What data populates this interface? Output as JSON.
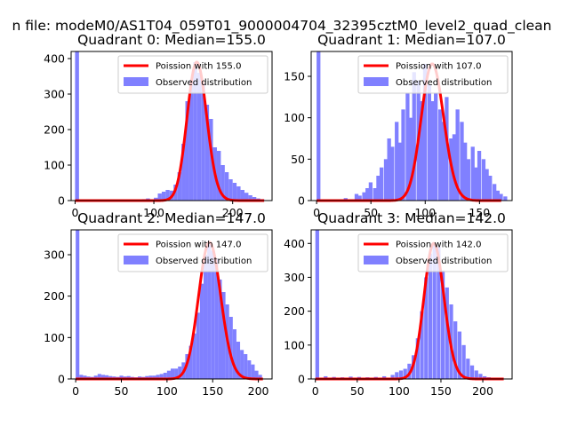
{
  "page": {
    "suptitle": "n file: modeM0/AS1T04_059T01_9000004704_32395cztM0_level2_quad_clean"
  },
  "colors": {
    "bars": "#8080ff",
    "curve": "#ff0000",
    "background": "#ffffff"
  },
  "chart_data": [
    {
      "type": "bar",
      "title": "Quadrant 0: Median=155.0",
      "xlim": [
        -5,
        250
      ],
      "ylim": [
        0,
        420
      ],
      "xticks": [
        0,
        100,
        200
      ],
      "xtick_labels": [
        "0",
        "100",
        "200"
      ],
      "yticks": [
        0,
        100,
        200,
        300,
        400
      ],
      "ytick_labels": [
        "0",
        "100",
        "200",
        "300",
        "400"
      ],
      "legend_position": "top-right",
      "series": [
        {
          "name": "Poission with 155.0",
          "kind": "line",
          "lambda": 155.0
        },
        {
          "name": "Observed distribution",
          "kind": "histogram",
          "bin_width": 5,
          "bins": [
            [
              0,
              420
            ],
            [
              85,
              4
            ],
            [
              90,
              6
            ],
            [
              95,
              3
            ],
            [
              100,
              8
            ],
            [
              105,
              20
            ],
            [
              110,
              25
            ],
            [
              115,
              30
            ],
            [
              120,
              28
            ],
            [
              125,
              45
            ],
            [
              130,
              80
            ],
            [
              135,
              160
            ],
            [
              140,
              280
            ],
            [
              145,
              340
            ],
            [
              150,
              390
            ],
            [
              155,
              360
            ],
            [
              160,
              330
            ],
            [
              165,
              270
            ],
            [
              170,
              230
            ],
            [
              175,
              150
            ],
            [
              180,
              140
            ],
            [
              185,
              100
            ],
            [
              190,
              80
            ],
            [
              195,
              60
            ],
            [
              200,
              50
            ],
            [
              205,
              40
            ],
            [
              210,
              30
            ],
            [
              215,
              22
            ],
            [
              220,
              15
            ],
            [
              225,
              10
            ],
            [
              230,
              6
            ],
            [
              235,
              4
            ]
          ]
        }
      ]
    },
    {
      "type": "bar",
      "title": "Quadrant 1: Median=107.0",
      "xlim": [
        -5,
        180
      ],
      "ylim": [
        0,
        180
      ],
      "xticks": [
        0,
        50,
        100,
        150
      ],
      "xtick_labels": [
        "0",
        "50",
        "100",
        "150"
      ],
      "yticks": [
        0,
        50,
        100,
        150
      ],
      "ytick_labels": [
        "0",
        "50",
        "100",
        "150"
      ],
      "legend_position": "top-right",
      "series": [
        {
          "name": "Poission with 107.0",
          "kind": "line",
          "lambda": 107.0
        },
        {
          "name": "Observed distribution",
          "kind": "histogram",
          "bin_width": 3.5,
          "bins": [
            [
              0,
              180
            ],
            [
              25,
              3
            ],
            [
              35,
              8
            ],
            [
              38,
              6
            ],
            [
              42,
              10
            ],
            [
              45,
              15
            ],
            [
              48,
              22
            ],
            [
              52,
              15
            ],
            [
              55,
              30
            ],
            [
              58,
              40
            ],
            [
              62,
              50
            ],
            [
              65,
              75
            ],
            [
              68,
              65
            ],
            [
              72,
              95
            ],
            [
              75,
              70
            ],
            [
              78,
              110
            ],
            [
              82,
              130
            ],
            [
              85,
              100
            ],
            [
              88,
              155
            ],
            [
              92,
              145
            ],
            [
              95,
              120
            ],
            [
              98,
              165
            ],
            [
              102,
              140
            ],
            [
              105,
              120
            ],
            [
              108,
              130
            ],
            [
              112,
              110
            ],
            [
              115,
              95
            ],
            [
              118,
              125
            ],
            [
              122,
              75
            ],
            [
              125,
              80
            ],
            [
              128,
              110
            ],
            [
              132,
              95
            ],
            [
              135,
              70
            ],
            [
              138,
              50
            ],
            [
              142,
              65
            ],
            [
              145,
              40
            ],
            [
              148,
              60
            ],
            [
              152,
              50
            ],
            [
              155,
              38
            ],
            [
              158,
              30
            ],
            [
              162,
              20
            ],
            [
              165,
              12
            ],
            [
              168,
              8
            ],
            [
              172,
              5
            ]
          ]
        }
      ]
    },
    {
      "type": "bar",
      "title": "Quadrant 2: Median=147.0",
      "xlim": [
        -5,
        215
      ],
      "ylim": [
        0,
        360
      ],
      "xticks": [
        0,
        50,
        100,
        150,
        200
      ],
      "xtick_labels": [
        "0",
        "50",
        "100",
        "150",
        "200"
      ],
      "yticks": [
        0,
        100,
        200,
        300
      ],
      "ytick_labels": [
        "0",
        "100",
        "200",
        "300"
      ],
      "legend_position": "top-right",
      "series": [
        {
          "name": "Poission with 147.0",
          "kind": "line",
          "lambda": 147.0
        },
        {
          "name": "Observed distribution",
          "kind": "histogram",
          "bin_width": 4,
          "bins": [
            [
              0,
              360
            ],
            [
              4,
              10
            ],
            [
              8,
              8
            ],
            [
              12,
              6
            ],
            [
              16,
              5
            ],
            [
              20,
              8
            ],
            [
              24,
              12
            ],
            [
              28,
              10
            ],
            [
              32,
              9
            ],
            [
              36,
              7
            ],
            [
              40,
              6
            ],
            [
              44,
              5
            ],
            [
              48,
              8
            ],
            [
              52,
              6
            ],
            [
              56,
              7
            ],
            [
              60,
              5
            ],
            [
              64,
              4
            ],
            [
              68,
              6
            ],
            [
              72,
              5
            ],
            [
              76,
              7
            ],
            [
              80,
              8
            ],
            [
              84,
              8
            ],
            [
              88,
              10
            ],
            [
              92,
              12
            ],
            [
              96,
              15
            ],
            [
              100,
              20
            ],
            [
              104,
              25
            ],
            [
              108,
              25
            ],
            [
              112,
              30
            ],
            [
              116,
              40
            ],
            [
              120,
              60
            ],
            [
              124,
              80
            ],
            [
              128,
              110
            ],
            [
              132,
              160
            ],
            [
              136,
              230
            ],
            [
              140,
              300
            ],
            [
              144,
              330
            ],
            [
              148,
              310
            ],
            [
              152,
              290
            ],
            [
              156,
              240
            ],
            [
              160,
              210
            ],
            [
              164,
              180
            ],
            [
              168,
              150
            ],
            [
              172,
              120
            ],
            [
              176,
              90
            ],
            [
              180,
              70
            ],
            [
              184,
              60
            ],
            [
              188,
              45
            ],
            [
              192,
              35
            ],
            [
              196,
              20
            ],
            [
              200,
              10
            ]
          ]
        }
      ]
    },
    {
      "type": "bar",
      "title": "Quadrant 3: Median=142.0",
      "xlim": [
        -5,
        235
      ],
      "ylim": [
        0,
        440
      ],
      "xticks": [
        0,
        50,
        100,
        150,
        200
      ],
      "xtick_labels": [
        "0",
        "50",
        "100",
        "150",
        "200"
      ],
      "yticks": [
        0,
        100,
        200,
        300,
        400
      ],
      "ytick_labels": [
        "0",
        "100",
        "200",
        "300",
        "400"
      ],
      "legend_position": "top-right",
      "series": [
        {
          "name": "Poission with 142.0",
          "kind": "line",
          "lambda": 142.0
        },
        {
          "name": "Observed distribution",
          "kind": "histogram",
          "bin_width": 4.5,
          "bins": [
            [
              0,
              440
            ],
            [
              10,
              8
            ],
            [
              20,
              6
            ],
            [
              30,
              5
            ],
            [
              40,
              7
            ],
            [
              50,
              6
            ],
            [
              60,
              5
            ],
            [
              70,
              6
            ],
            [
              80,
              8
            ],
            [
              90,
              12
            ],
            [
              95,
              20
            ],
            [
              100,
              25
            ],
            [
              105,
              30
            ],
            [
              110,
              45
            ],
            [
              115,
              70
            ],
            [
              120,
              120
            ],
            [
              125,
              200
            ],
            [
              130,
              300
            ],
            [
              135,
              370
            ],
            [
              140,
              400
            ],
            [
              145,
              390
            ],
            [
              150,
              320
            ],
            [
              155,
              270
            ],
            [
              160,
              220
            ],
            [
              165,
              170
            ],
            [
              170,
              140
            ],
            [
              175,
              100
            ],
            [
              180,
              60
            ],
            [
              185,
              40
            ],
            [
              190,
              25
            ],
            [
              195,
              15
            ],
            [
              200,
              8
            ],
            [
              205,
              5
            ],
            [
              210,
              3
            ]
          ]
        }
      ]
    }
  ]
}
